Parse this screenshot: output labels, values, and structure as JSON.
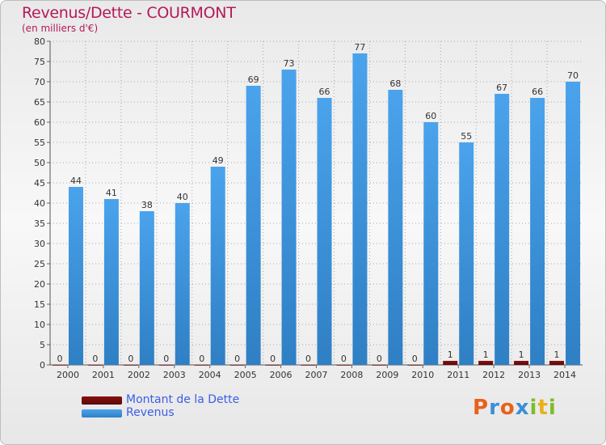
{
  "header": {
    "title": "Revenus/Dette - COURMONT",
    "subtitle": "(en milliers d'€)"
  },
  "chart_data": {
    "type": "bar",
    "categories": [
      "2000",
      "2001",
      "2002",
      "2003",
      "2004",
      "2005",
      "2006",
      "2007",
      "2008",
      "2009",
      "2010",
      "2011",
      "2012",
      "2013",
      "2014"
    ],
    "series": [
      {
        "name": "Montant de la Dette",
        "color": "#6b0b0b",
        "values": [
          0,
          0,
          0,
          0,
          0,
          0,
          0,
          0,
          0,
          0,
          0,
          1,
          1,
          1,
          1
        ]
      },
      {
        "name": "Revenus",
        "color": "#3a8fd8",
        "values": [
          44,
          41,
          38,
          40,
          49,
          69,
          73,
          66,
          77,
          68,
          60,
          55,
          67,
          66,
          70
        ]
      }
    ],
    "ylim": [
      0,
      80
    ],
    "ytick_step": 5,
    "grid": true,
    "legend_position": "bottom-left"
  },
  "legend": {
    "items": [
      {
        "label": "Montant de la Dette",
        "color": "#6b0b0b"
      },
      {
        "label": "Revenus",
        "color": "#3a8fd8"
      }
    ]
  },
  "logo": {
    "letters": [
      "P",
      "r",
      "o",
      "x",
      "i",
      "t",
      "i"
    ],
    "colors": [
      "#e8611a",
      "#3a8fd8",
      "#e8611a",
      "#3a8fd8",
      "#7cbd2c",
      "#e8b01a",
      "#7cbd2c"
    ]
  }
}
